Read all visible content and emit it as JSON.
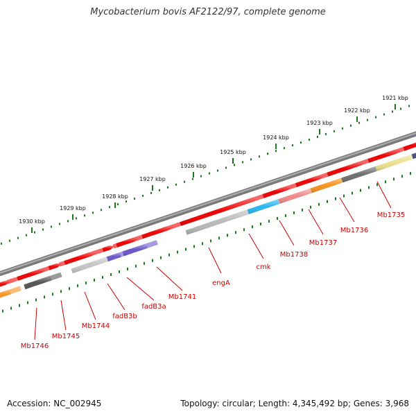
{
  "title": "Mycobacterium bovis AF2122/97, complete genome",
  "footer": {
    "accession": "Accession: NC_002945",
    "summary": "Topology: circular; Length: 4,345,492 bp; Genes: 3,968"
  },
  "colors": {
    "backbone": "#7a7a7a",
    "cds_forward": "#ee0000",
    "scale_ticks": "#1a7a1a",
    "label_lines": "#cc0000"
  },
  "scale_labels": [
    {
      "id": "1921",
      "text": "1921 kbp"
    },
    {
      "id": "1922",
      "text": "1922 kbp"
    },
    {
      "id": "1923",
      "text": "1923 kbp"
    },
    {
      "id": "1924",
      "text": "1924 kbp"
    },
    {
      "id": "1925",
      "text": "1925 kbp"
    },
    {
      "id": "1926",
      "text": "1926 kbp"
    },
    {
      "id": "1927",
      "text": "1927 kbp"
    },
    {
      "id": "1928",
      "text": "1928 kbp"
    },
    {
      "id": "1929",
      "text": "1929 kbp"
    },
    {
      "id": "1930",
      "text": "1930 kbp"
    }
  ],
  "genes": [
    {
      "id": "mb1735",
      "label": "Mb1735",
      "color": "#4a4f8c"
    },
    {
      "id": "mb1736",
      "label": "Mb1736",
      "color": "#ecdf8c"
    },
    {
      "id": "mb1737",
      "label": "Mb1737",
      "color": "#6e6e6e"
    },
    {
      "id": "mb1738",
      "label": "Mb1738",
      "color": "#f7921e"
    },
    {
      "id": "cmk",
      "label": "cmk",
      "color": "#f08a8a"
    },
    {
      "id": "enga",
      "label": "engA",
      "color": "#29b6f0"
    },
    {
      "id": "mb1741",
      "label": "Mb1741",
      "color": "#b8b8b8"
    },
    {
      "id": "fadb3a",
      "label": "fadB3a",
      "color": "#6a58c8"
    },
    {
      "id": "fadb3b",
      "label": "fadB3b",
      "color": "#6a58c8"
    },
    {
      "id": "mb1744",
      "label": "Mb1744",
      "color": "#c4c4c4"
    },
    {
      "id": "mb1745",
      "label": "Mb1745",
      "color": "#555555"
    },
    {
      "id": "mb1746",
      "label": "Mb1746",
      "color": "#f7921e"
    }
  ]
}
